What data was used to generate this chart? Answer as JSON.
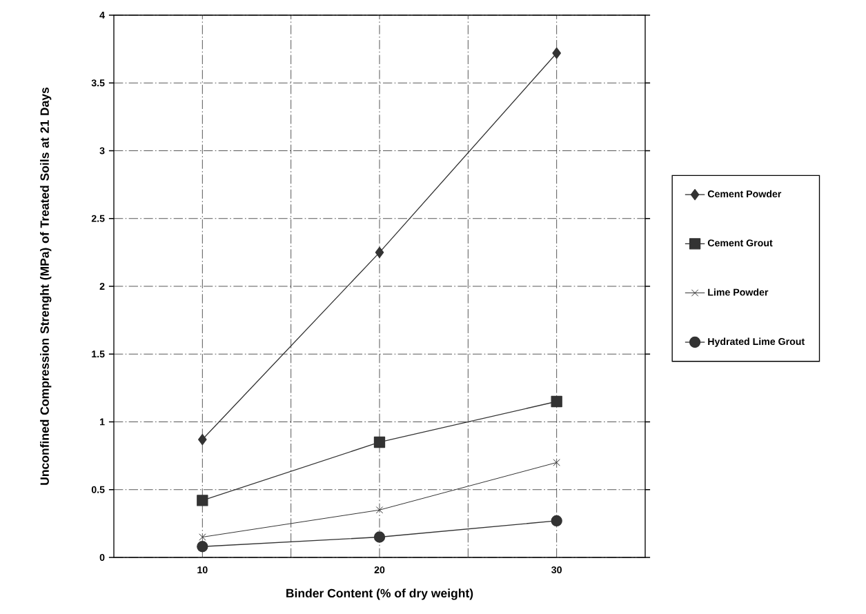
{
  "chart_data": {
    "type": "line",
    "xlabel": "Binder Content (% of dry weight)",
    "ylabel": "Unconfined Compression Strenght (MPa) of Treated Soils at 21 Days",
    "x": [
      10,
      20,
      30
    ],
    "series": [
      {
        "name": "Cement Powder",
        "color": "#333333",
        "marker": "diamond",
        "values": [
          0.87,
          2.25,
          3.72
        ]
      },
      {
        "name": "Cement Grout",
        "color": "#333333",
        "marker": "square",
        "values": [
          0.42,
          0.85,
          1.15
        ]
      },
      {
        "name": "Lime Powder",
        "color": "#333333",
        "marker": "cross",
        "values": [
          0.15,
          0.35,
          0.7
        ]
      },
      {
        "name": "Hydrated Lime Grout",
        "color": "#333333",
        "marker": "circle",
        "values": [
          0.08,
          0.15,
          0.27
        ]
      }
    ],
    "xlim": [
      5,
      35
    ],
    "xticks": [
      10,
      {
        "value": 15,
        "label": null
      },
      20,
      {
        "value": 25,
        "label": null
      },
      30
    ],
    "ylim": [
      0,
      4
    ],
    "yticks": [
      0,
      0.5,
      1,
      1.5,
      2,
      2.5,
      3,
      3.5,
      4
    ],
    "grid": true,
    "legend": "right",
    "line_style": "solid"
  }
}
